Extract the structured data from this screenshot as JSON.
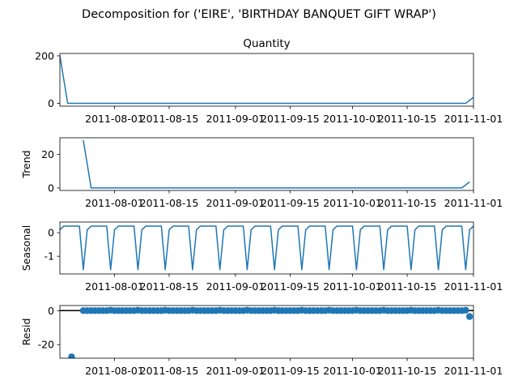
{
  "chart_data": {
    "type": "line",
    "title": "Decomposition for ('EIRE', 'BIRTHDAY BANQUET GIFT WRAP')",
    "x_range": [
      "2011-07-18",
      "2011-11-01"
    ],
    "x_ticks": [
      "2011-08-01",
      "2011-08-15",
      "2011-09-01",
      "2011-09-15",
      "2011-10-01",
      "2011-10-15",
      "2011-11-01"
    ],
    "panels": [
      {
        "name": "observed",
        "title": "Quantity",
        "ylabel": "",
        "style": "line",
        "ylim": [
          -12,
          210
        ],
        "yticks": [
          0,
          200
        ],
        "points": [
          [
            "2011-07-18",
            200
          ],
          [
            "2011-07-20",
            0
          ],
          [
            "2011-10-30",
            0
          ],
          [
            "2011-11-01",
            25
          ]
        ]
      },
      {
        "name": "trend",
        "title": "",
        "ylabel": "Trend",
        "style": "line",
        "ylim": [
          -1.5,
          30
        ],
        "yticks": [
          0,
          20
        ],
        "points": [
          [
            "2011-07-24",
            28.6
          ],
          [
            "2011-07-26",
            0
          ],
          [
            "2011-10-29",
            0
          ],
          [
            "2011-10-31",
            3.6
          ]
        ]
      },
      {
        "name": "seasonal",
        "title": "",
        "ylabel": "Seasonal",
        "style": "seasonal",
        "ylim": [
          -1.75,
          0.45
        ],
        "yticks": [
          -1,
          0
        ],
        "period_days": 7,
        "pattern": [
          -1.57,
          0.12,
          0.28,
          0.28,
          0.28,
          0.28,
          0.28
        ],
        "trough_dates": [
          "2011-07-24",
          "2011-07-31",
          "2011-08-07",
          "2011-08-14",
          "2011-08-21",
          "2011-08-28",
          "2011-09-04",
          "2011-09-11",
          "2011-09-18",
          "2011-09-25",
          "2011-10-02",
          "2011-10-09",
          "2011-10-16",
          "2011-10-23",
          "2011-10-30"
        ]
      },
      {
        "name": "resid",
        "title": "",
        "ylabel": "Resid",
        "style": "scatter",
        "ylim": [
          -28,
          3
        ],
        "yticks": [
          -20,
          0
        ],
        "zero_line": true,
        "scatter_start": "2011-07-24",
        "scatter_end": "2011-10-31",
        "points": [
          [
            "2011-07-21",
            -27.2
          ],
          [
            "2011-10-31",
            -3.5
          ]
        ],
        "bumps": [
          "2011-07-31",
          "2011-08-07",
          "2011-08-14",
          "2011-08-21",
          "2011-08-28",
          "2011-09-04",
          "2011-09-11",
          "2011-09-18",
          "2011-09-25",
          "2011-10-02",
          "2011-10-09",
          "2011-10-16",
          "2011-10-23",
          "2011-10-30"
        ],
        "bump_value": 0.25
      }
    ]
  }
}
